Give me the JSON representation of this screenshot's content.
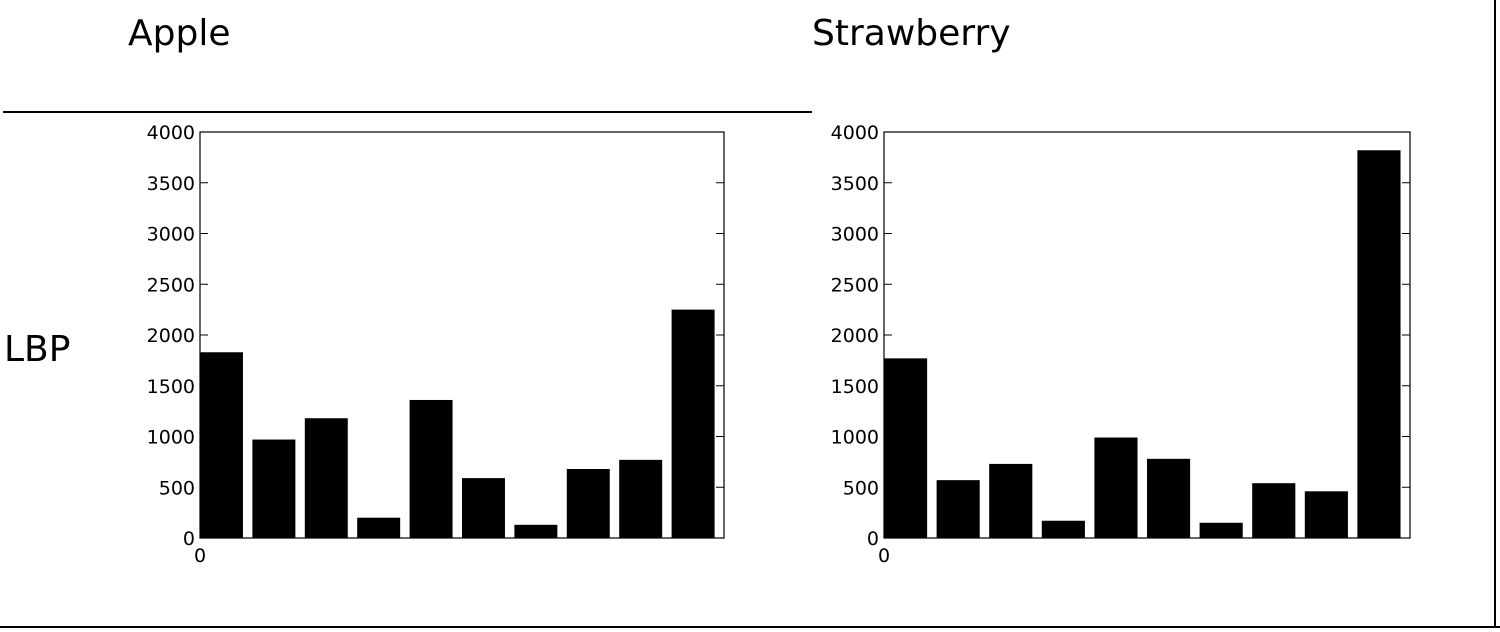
{
  "columns": {
    "apple": "Apple",
    "strawberry": "Strawberry"
  },
  "row_label": "LBP",
  "chart_data": [
    {
      "type": "bar",
      "title": "",
      "xlabel": "",
      "ylabel": "",
      "ylim": [
        0,
        4000
      ],
      "yticks": [
        0,
        500,
        1000,
        1500,
        2000,
        2500,
        3000,
        3500,
        4000
      ],
      "xticks": [
        "0"
      ],
      "values": [
        1830,
        970,
        1180,
        200,
        1360,
        590,
        130,
        680,
        770,
        2250
      ],
      "bar_color": "#000000"
    },
    {
      "type": "bar",
      "title": "",
      "xlabel": "",
      "ylabel": "",
      "ylim": [
        0,
        4000
      ],
      "yticks": [
        0,
        500,
        1000,
        1500,
        2000,
        2500,
        3000,
        3500,
        4000
      ],
      "xticks": [
        "0"
      ],
      "values": [
        1770,
        570,
        730,
        170,
        990,
        780,
        150,
        540,
        460,
        3820
      ],
      "bar_color": "#000000"
    }
  ]
}
